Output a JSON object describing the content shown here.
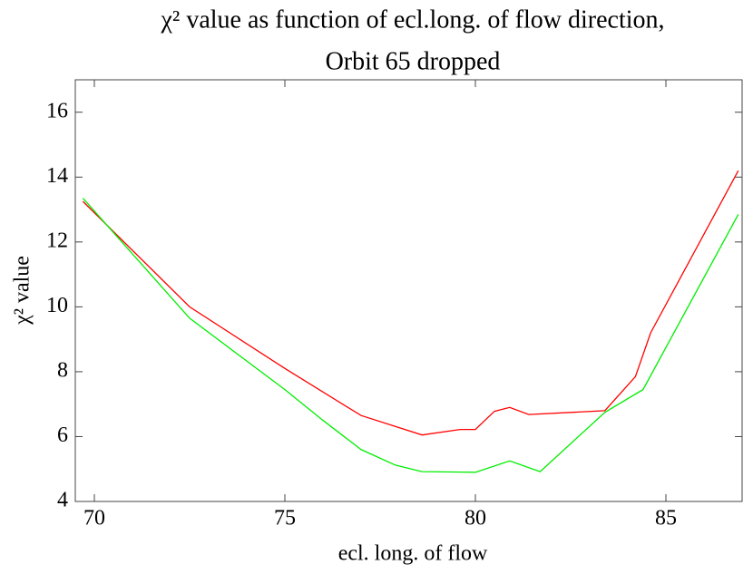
{
  "chart_data": {
    "type": "line",
    "title": [
      "χ² value as function of ecl.long. of flow direction,",
      "Orbit 65 dropped"
    ],
    "x_label": "ecl. long. of flow",
    "y_label": "χ² value",
    "xlim": [
      69.5,
      87.0
    ],
    "ylim": [
      4,
      17
    ],
    "xticks": [
      70,
      75,
      80,
      85
    ],
    "yticks": [
      4,
      6,
      8,
      10,
      12,
      14,
      16
    ],
    "series": [
      {
        "color": "#ff0000",
        "x": [
          69.7,
          72.5,
          75.0,
          77.0,
          78.6,
          79.6,
          80.0,
          80.5,
          80.9,
          81.4,
          83.4,
          84.2,
          84.6,
          86.9
        ],
        "values": [
          13.25,
          10.0,
          8.1,
          6.65,
          6.05,
          6.22,
          6.22,
          6.78,
          6.9,
          6.68,
          6.8,
          7.85,
          9.2,
          14.2
        ]
      },
      {
        "color": "#00ee00",
        "x": [
          69.7,
          72.5,
          75.0,
          76.0,
          77.0,
          77.9,
          78.6,
          80.0,
          80.9,
          81.7,
          83.4,
          84.4,
          86.9
        ],
        "values": [
          13.35,
          9.65,
          7.45,
          6.5,
          5.6,
          5.12,
          4.92,
          4.9,
          5.25,
          4.92,
          6.75,
          7.45,
          12.85
        ]
      }
    ]
  }
}
